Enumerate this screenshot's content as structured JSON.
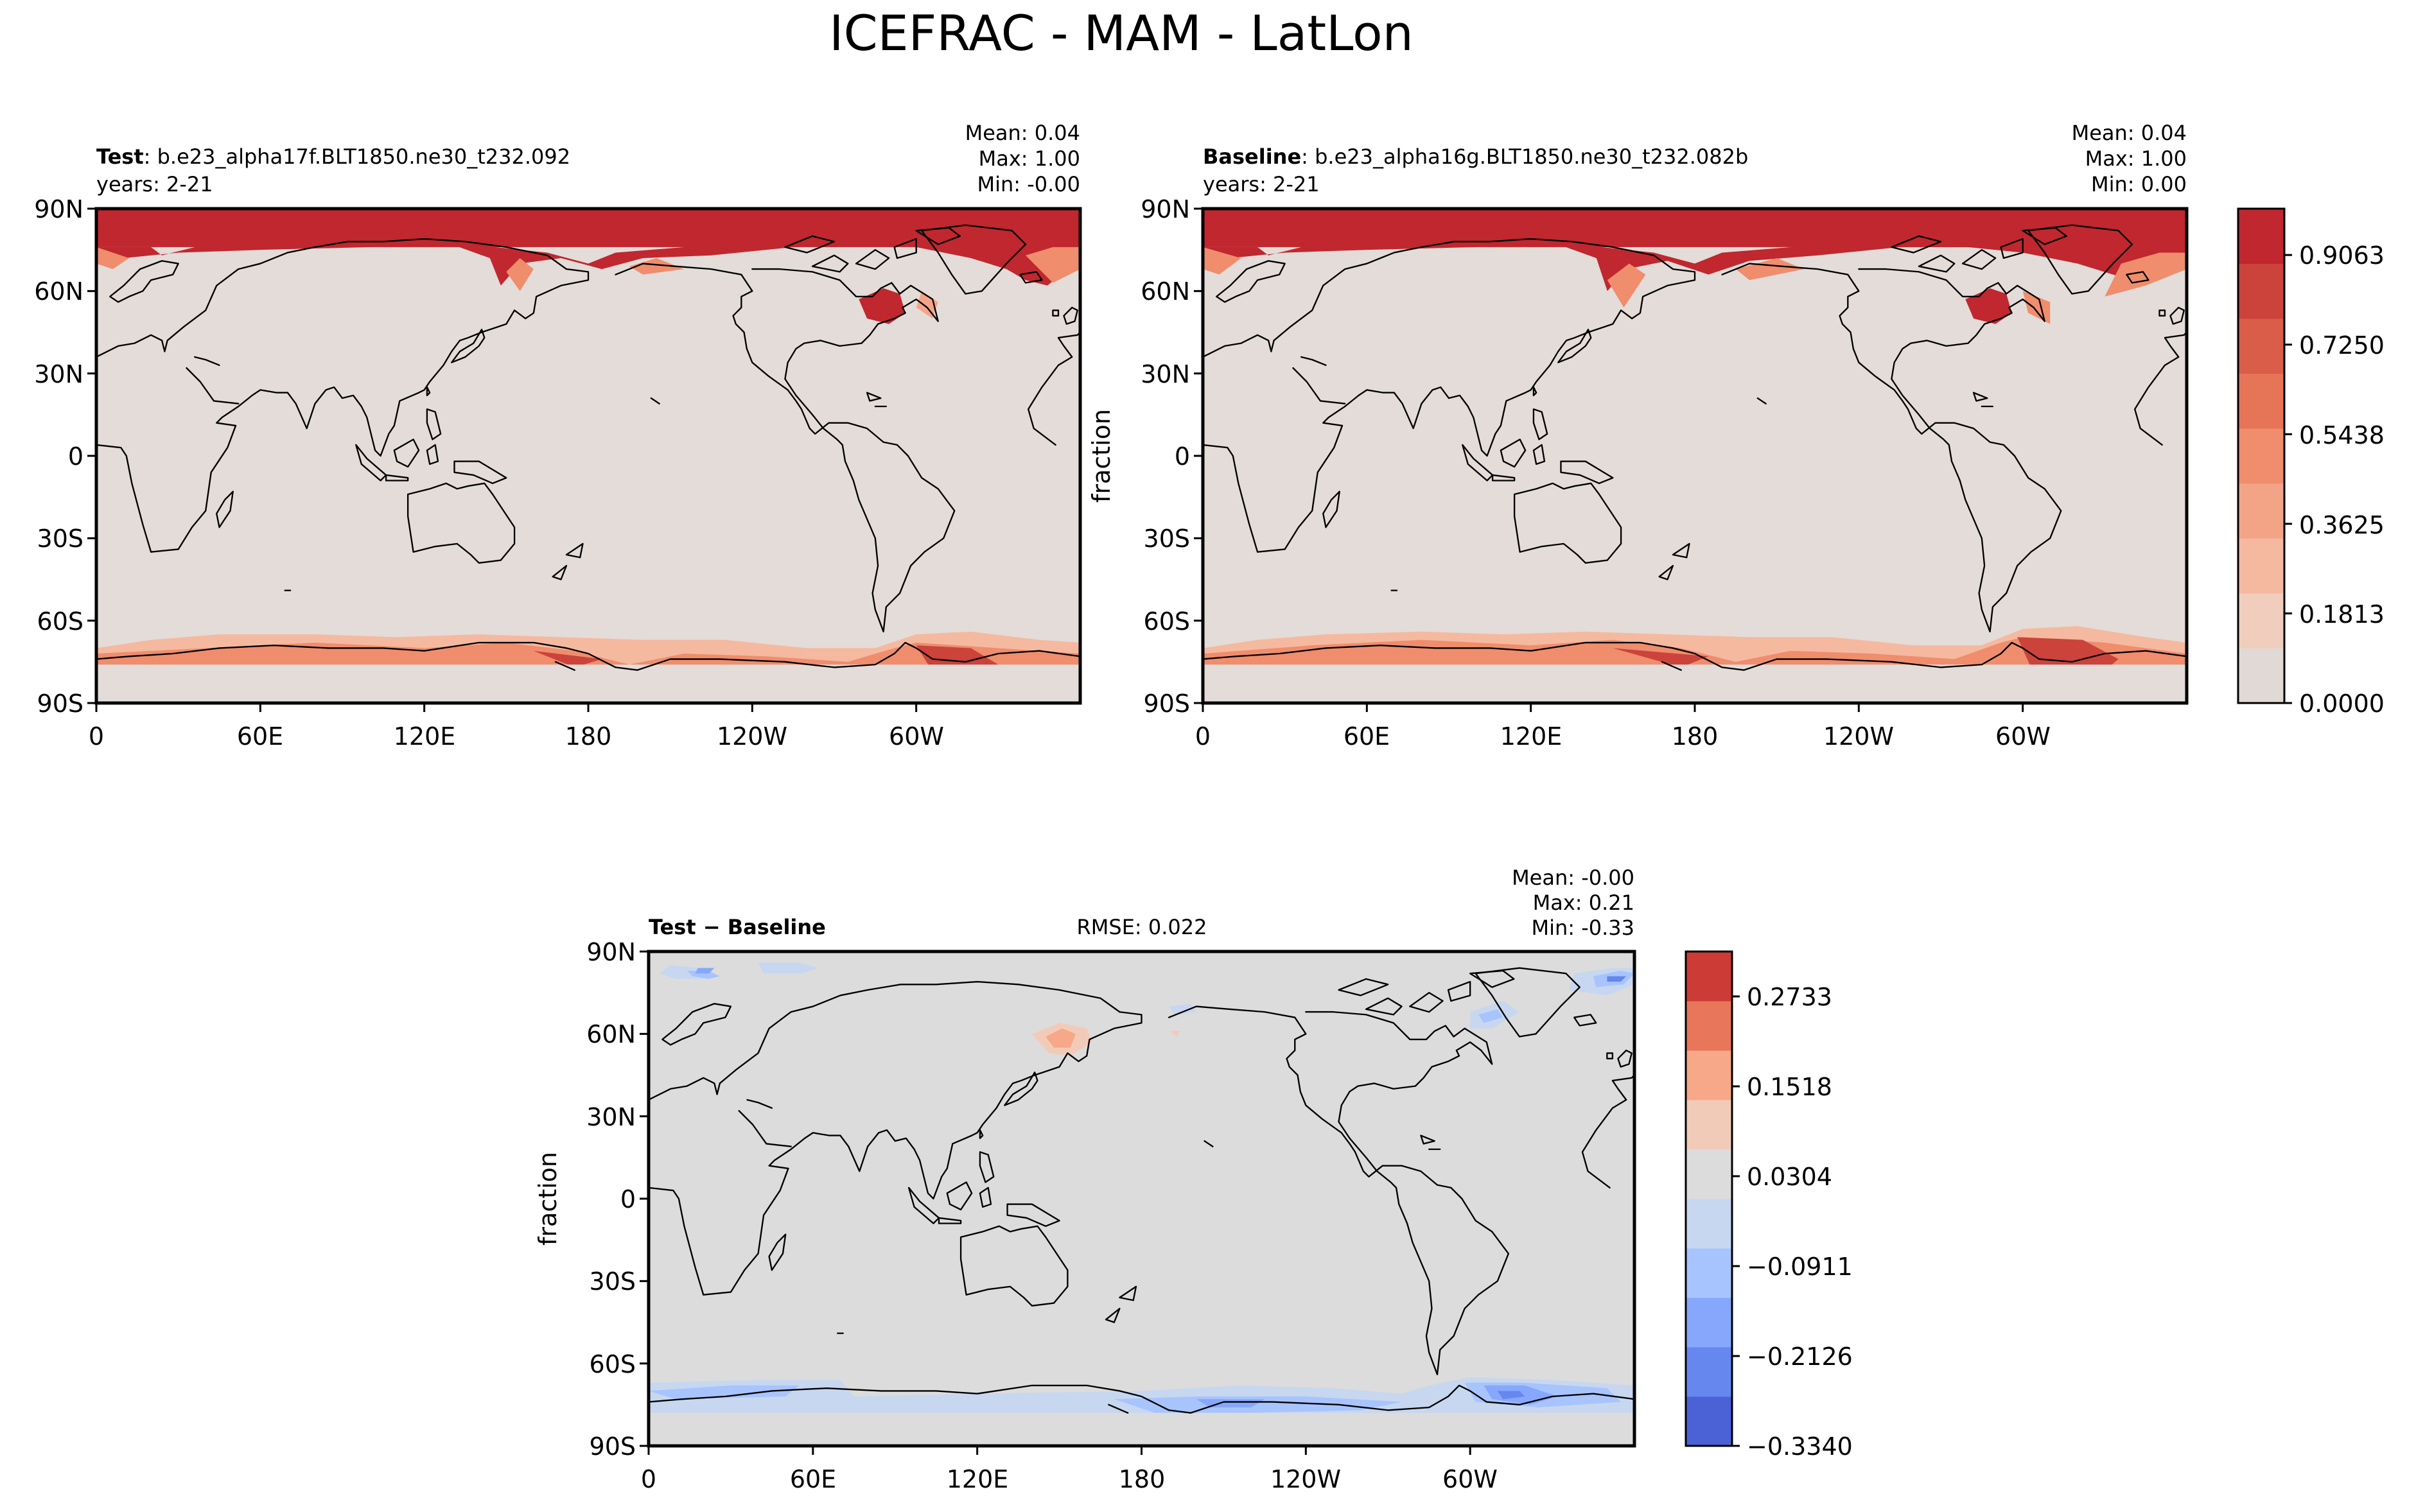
{
  "title": "ICEFRAC - MAM - LatLon",
  "colors": {
    "land_fill": "#e3dcd8",
    "diff_neutral": "#dcdcdc",
    "coastline": "#000000",
    "seq_scale": [
      "#e1d9d5",
      "#f0cdbd",
      "#f5b9a0",
      "#f4a486",
      "#ef8d6d",
      "#e67558",
      "#d95d48",
      "#cb433b",
      "#c0272f"
    ],
    "div_scale": [
      "#4a62d5",
      "#6687ee",
      "#86a7fb",
      "#a8c4fe",
      "#c7d7f0",
      "#dcdcdc",
      "#f2cbb8",
      "#f6a888",
      "#e8765b",
      "#cc3b35"
    ]
  },
  "chart_data": [
    {
      "type": "heatmap",
      "panel": "test",
      "label_bold": "Test",
      "case_name": ": b.e23_alpha17f.BLT1850.ne30_t232.092",
      "years": "years: 2-21",
      "stats": {
        "mean": "Mean:  0.04",
        "max": "Max:  1.00",
        "min": "Min: -0.00"
      },
      "xticks": [
        "0",
        "60E",
        "120E",
        "180",
        "120W",
        "60W"
      ],
      "xtick_values": [
        0,
        60,
        120,
        180,
        240,
        300
      ],
      "yticks": [
        "90N",
        "60N",
        "30N",
        "0",
        "30S",
        "60S",
        "90S"
      ],
      "ytick_values": [
        90,
        60,
        30,
        0,
        -30,
        -60,
        -90
      ],
      "xlim": [
        0,
        360
      ],
      "ylim": [
        -90,
        90
      ],
      "colorbar": false
    },
    {
      "type": "heatmap",
      "panel": "baseline",
      "label_bold": "Baseline",
      "case_name": ": b.e23_alpha16g.BLT1850.ne30_t232.082b",
      "years": "years: 2-21",
      "stats": {
        "mean": "Mean:  0.04",
        "max": "Max:  1.00",
        "min": "Min:  0.00"
      },
      "ylabel": "fraction",
      "xticks": [
        "0",
        "60E",
        "120E",
        "180",
        "120W",
        "60W"
      ],
      "xtick_values": [
        0,
        60,
        120,
        180,
        240,
        300
      ],
      "yticks": [
        "90N",
        "60N",
        "30N",
        "0",
        "30S",
        "60S",
        "90S"
      ],
      "ytick_values": [
        90,
        60,
        30,
        0,
        -30,
        -60,
        -90
      ],
      "xlim": [
        0,
        360
      ],
      "ylim": [
        -90,
        90
      ],
      "colorbar": {
        "ticks": [
          "0.0000",
          "0.1813",
          "0.3625",
          "0.5438",
          "0.7250",
          "0.9063"
        ],
        "tick_values": [
          0.0,
          0.1813,
          0.3625,
          0.5438,
          0.725,
          0.9063
        ],
        "range": [
          0,
          1.0
        ]
      }
    },
    {
      "type": "heatmap",
      "panel": "diff",
      "label_bold": "Test − Baseline",
      "rmse": "RMSE: 0.022",
      "stats": {
        "mean": "Mean: -0.00",
        "max": "Max:  0.21",
        "min": "Min: -0.33"
      },
      "ylabel": "fraction",
      "xticks": [
        "0",
        "60E",
        "120E",
        "180",
        "120W",
        "60W"
      ],
      "xtick_values": [
        0,
        60,
        120,
        180,
        240,
        300
      ],
      "yticks": [
        "90N",
        "60N",
        "30N",
        "0",
        "30S",
        "60S",
        "90S"
      ],
      "ytick_values": [
        90,
        60,
        30,
        0,
        -30,
        -60,
        -90
      ],
      "xlim": [
        0,
        360
      ],
      "ylim": [
        -90,
        90
      ],
      "colorbar": {
        "ticks": [
          "−0.3340",
          "−0.2126",
          "−0.0911",
          "0.0304",
          "0.1518",
          "0.2733"
        ],
        "tick_values": [
          -0.334,
          -0.2126,
          -0.0911,
          0.0304,
          0.1518,
          0.2733
        ],
        "range": [
          -0.334,
          0.334
        ]
      }
    }
  ]
}
